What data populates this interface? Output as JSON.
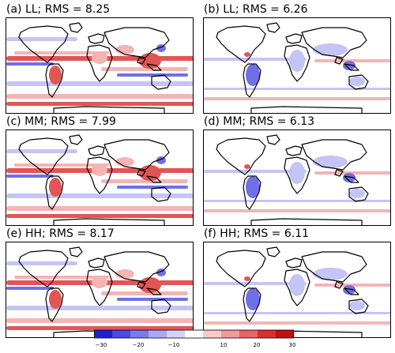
{
  "panels": [
    {
      "title": "(a) LL; RMS = 8.25",
      "bias": "warm"
    },
    {
      "title": "(b) LL; RMS = 6.26",
      "bias": "cool"
    },
    {
      "title": "(c) MM; RMS = 7.99",
      "bias": "warm"
    },
    {
      "title": "(d) MM; RMS = 6.13",
      "bias": "cool"
    },
    {
      "title": "(e) HH; RMS = 8.17",
      "bias": "warm"
    },
    {
      "title": "(f) HH; RMS = 6.11",
      "bias": "cool"
    }
  ],
  "colorbar": {
    "ticks": [
      "−30",
      "−20",
      "−10",
      "10",
      "20",
      "30"
    ],
    "colors": [
      "#1f1fd6",
      "#4a4ae6",
      "#7a7af0",
      "#a9a9f5",
      "#d3d3fa",
      "#ffffff",
      "#f7caca",
      "#f09a9a",
      "#e86565",
      "#d92f2f",
      "#c20f0f"
    ]
  },
  "colors": {
    "red": "#e25555",
    "pink": "#f4b4b4",
    "blue": "#6f6fe8",
    "lightblue": "#c4c4f6"
  }
}
